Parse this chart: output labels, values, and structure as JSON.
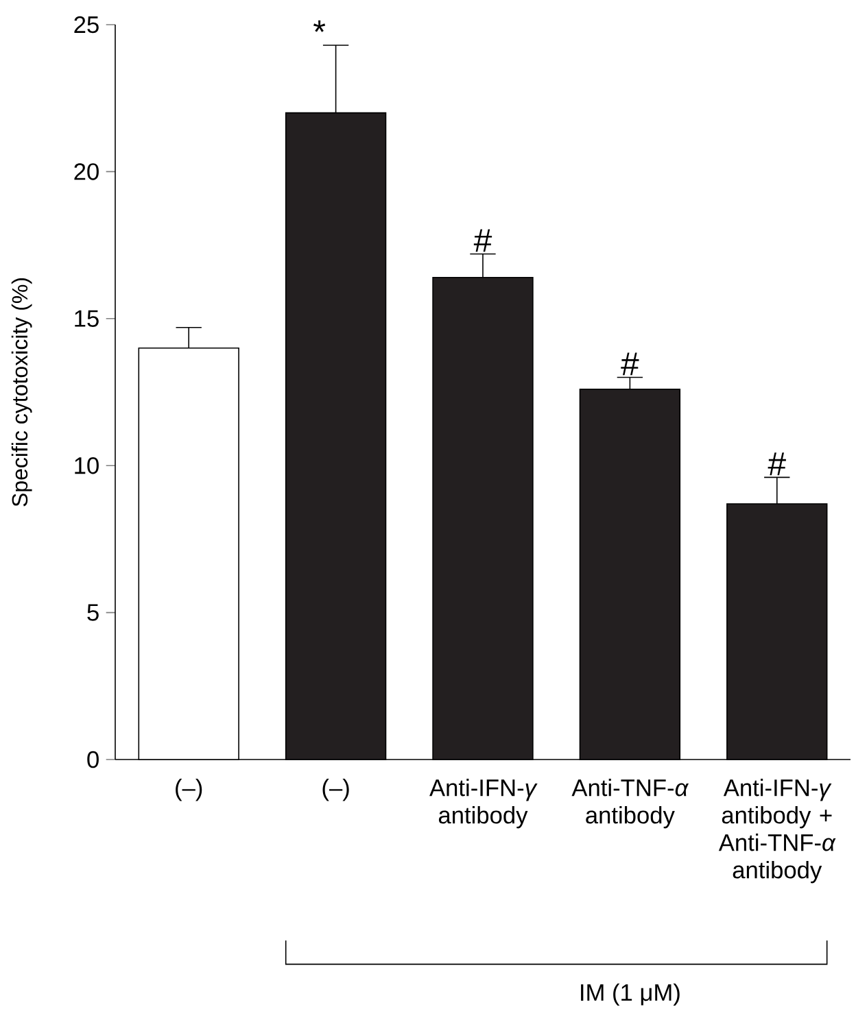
{
  "chart_data": {
    "type": "bar",
    "ylabel": "Specific cytotoxicity (%)",
    "categories": [
      "(–)",
      "(–)",
      "Anti-IFN-*γ* antibody",
      "Anti-TNF-*α* antibody",
      "Anti-IFN-*γ* antibody + Anti-TNF-*α* antibody"
    ],
    "values": [
      14.0,
      22.0,
      16.4,
      12.6,
      8.7
    ],
    "errors": [
      [
        14.0,
        14.7
      ],
      [
        22.0,
        24.3
      ],
      [
        16.4,
        17.2
      ],
      [
        12.6,
        13.0
      ],
      [
        8.7,
        9.6
      ]
    ],
    "colors": [
      "#ffffff",
      "#231f20",
      "#231f20",
      "#231f20",
      "#231f20"
    ],
    "ylim": [
      0,
      25
    ],
    "yticks": [
      0,
      5,
      10,
      15,
      20,
      25
    ],
    "grid": false,
    "annotations": [
      "*",
      "#",
      "#",
      "#",
      "IM (1 μM)"
    ]
  }
}
